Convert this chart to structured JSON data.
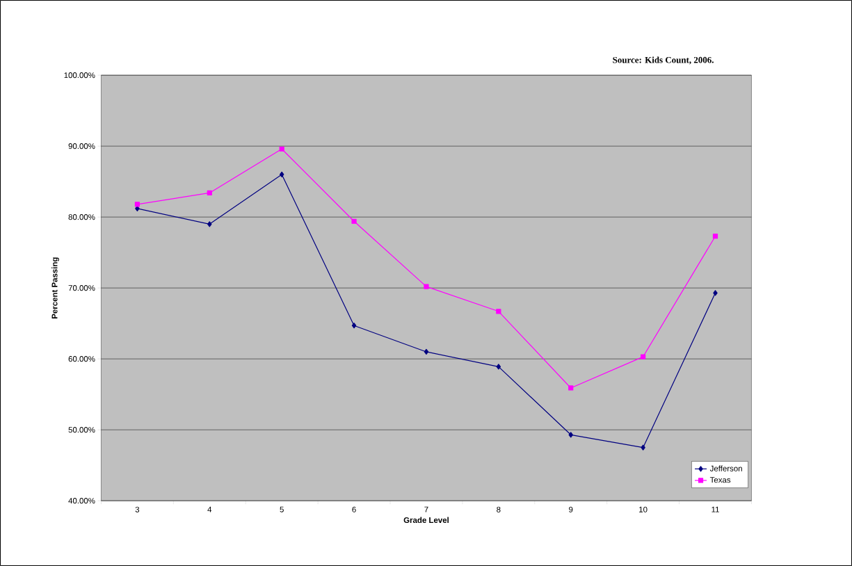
{
  "chart_data": {
    "type": "line",
    "xlabel": "Grade Level",
    "ylabel": "Percent Passing",
    "annotations": [
      "Source: Kids Count, 2006."
    ],
    "categories": [
      "3",
      "4",
      "5",
      "6",
      "7",
      "8",
      "9",
      "10",
      "11"
    ],
    "series": [
      {
        "name": "Jefferson",
        "color": "#000080",
        "marker": "diamond",
        "values": [
          81.2,
          79.0,
          86.0,
          64.7,
          61.0,
          58.9,
          49.3,
          47.5,
          69.3
        ]
      },
      {
        "name": "Texas",
        "color": "#ff00ff",
        "marker": "square",
        "values": [
          81.8,
          83.4,
          89.6,
          79.4,
          70.2,
          66.7,
          55.9,
          60.3,
          77.3
        ]
      }
    ],
    "ylim": [
      40,
      100
    ],
    "yticks": [
      {
        "value": 40,
        "label": "40.00%"
      },
      {
        "value": 50,
        "label": "50.00%"
      },
      {
        "value": 60,
        "label": "60.00%"
      },
      {
        "value": 70,
        "label": "70.00%"
      },
      {
        "value": 80,
        "label": "80.00%"
      },
      {
        "value": 90,
        "label": "90.00%"
      },
      {
        "value": 100,
        "label": "100.00%"
      }
    ],
    "grid": "y",
    "legend": "bottom right",
    "line_style": "solid"
  }
}
